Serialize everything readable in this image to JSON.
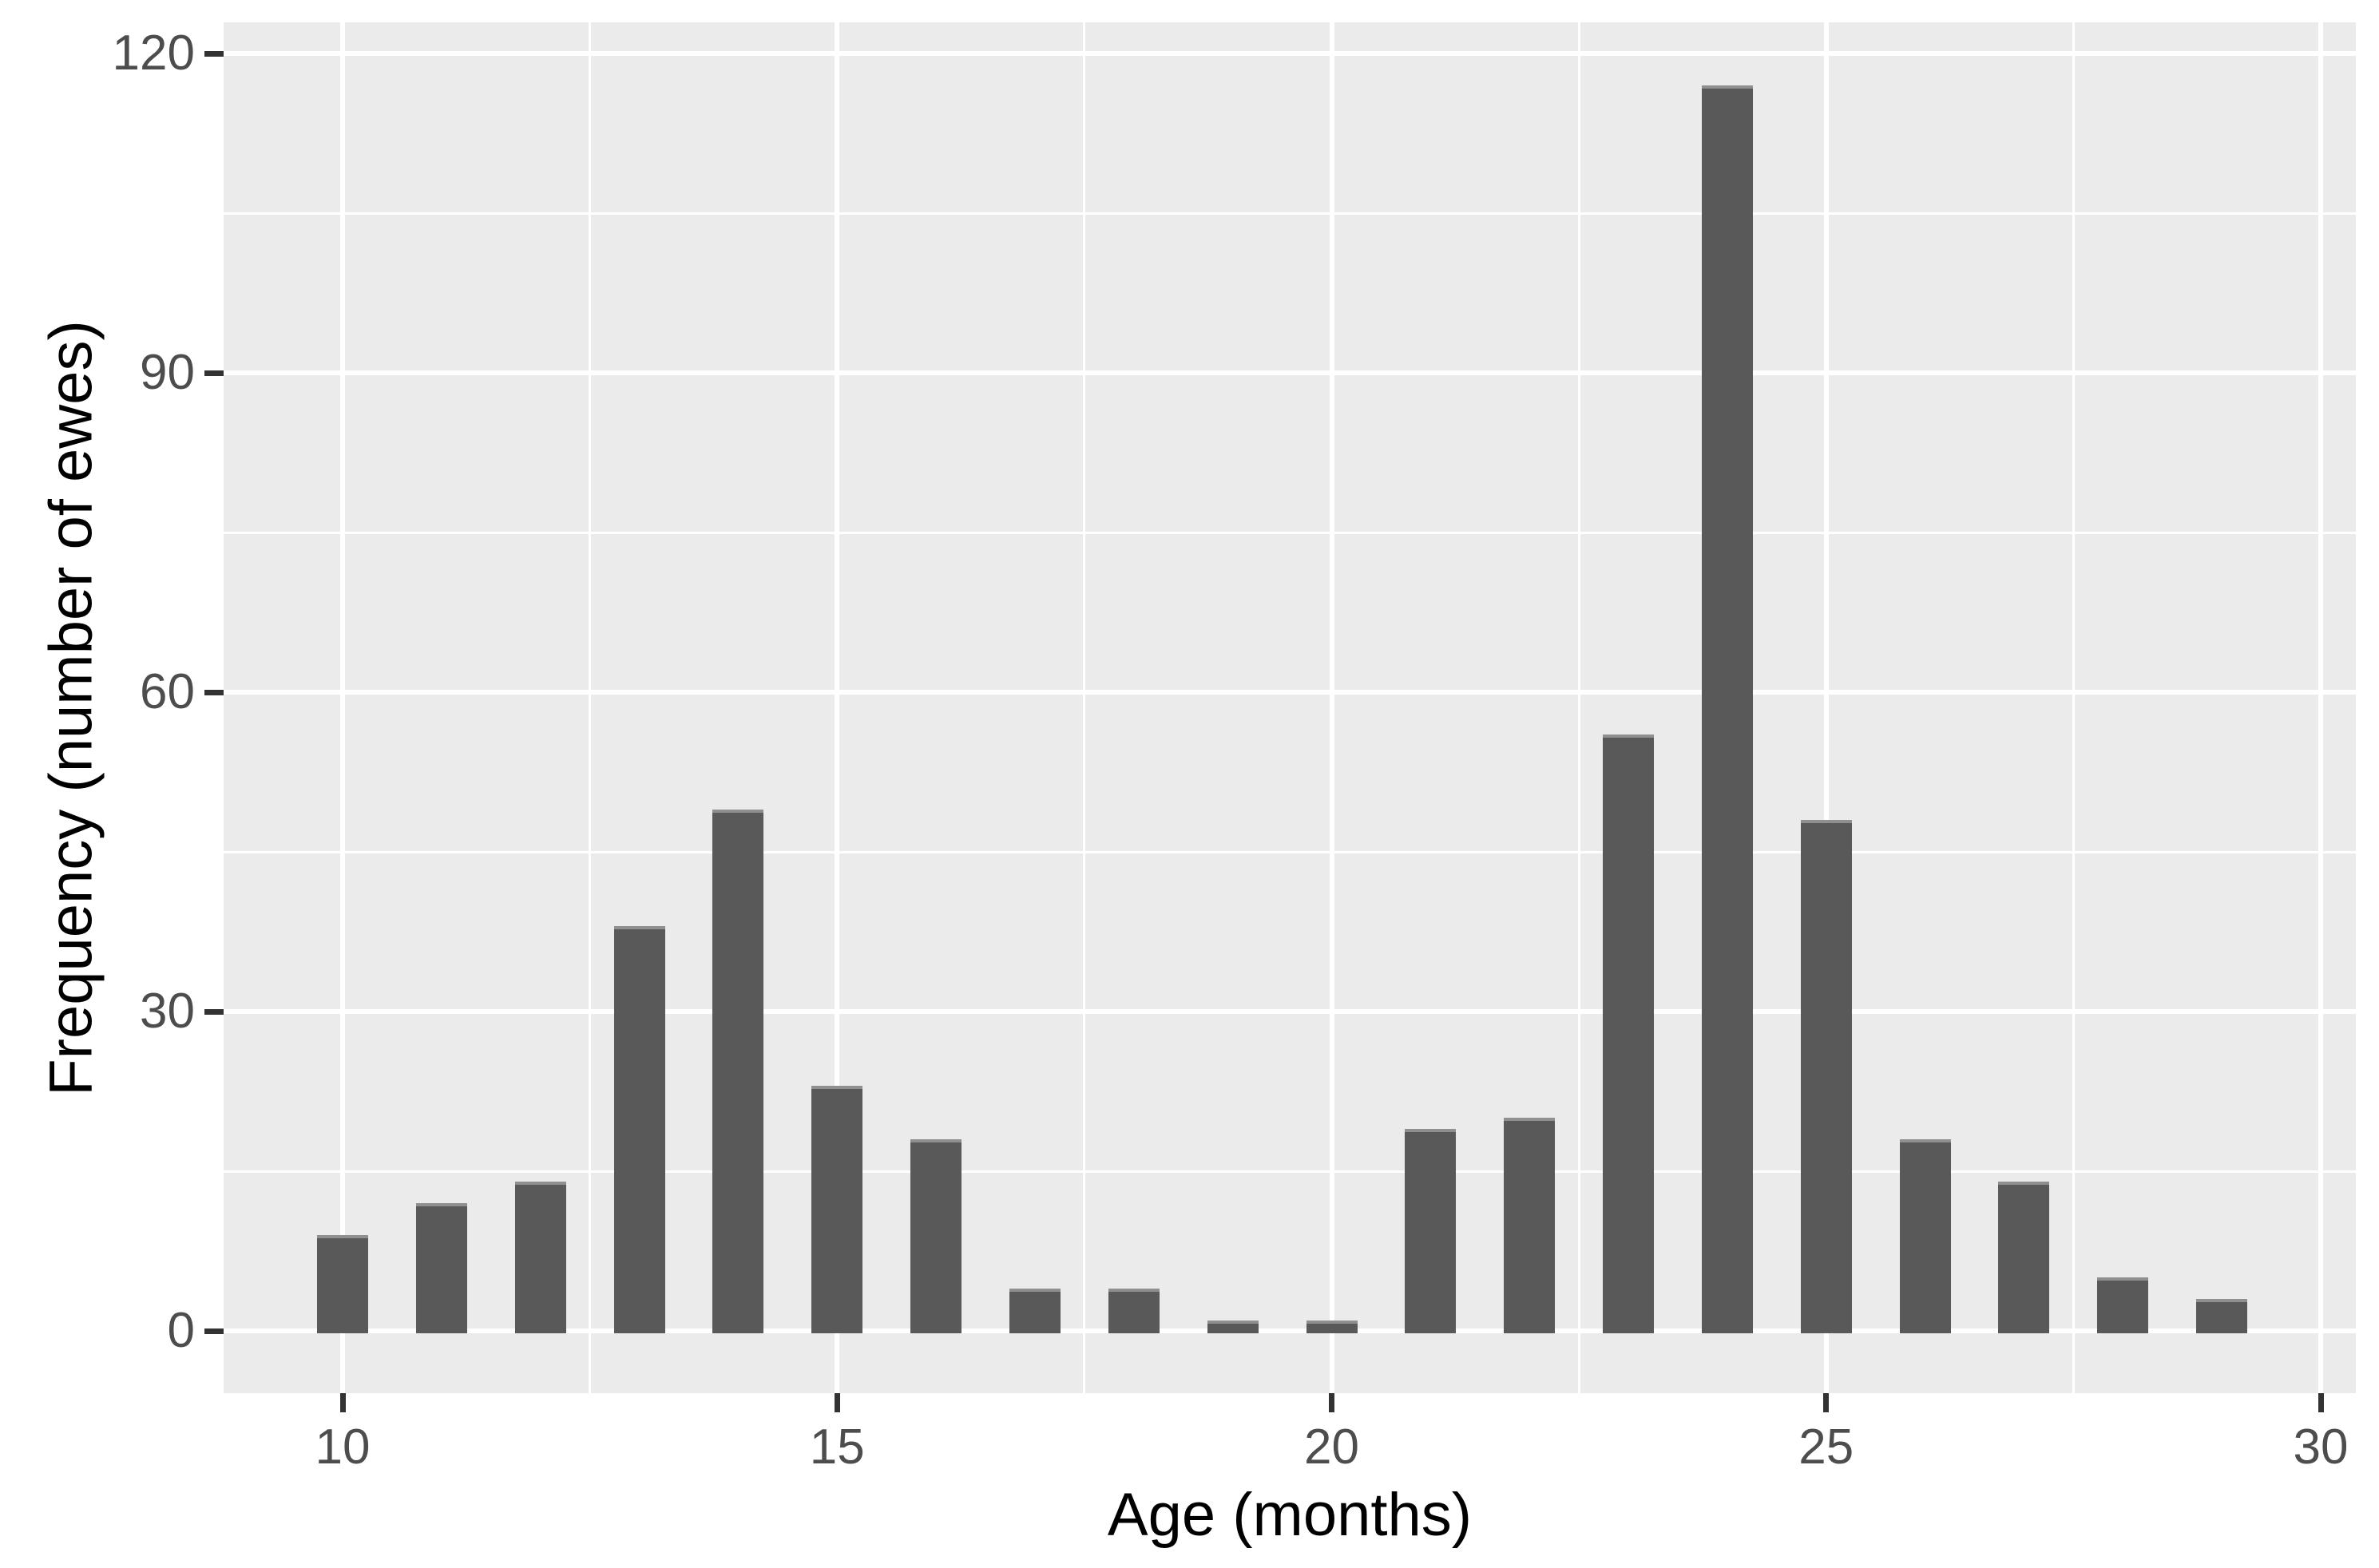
{
  "chart_data": {
    "type": "bar",
    "title": "",
    "xlabel": "Age (months)",
    "ylabel": "Frequency (number of ewes)",
    "categories": [
      10,
      11,
      12,
      13,
      14,
      15,
      16,
      17,
      18,
      19,
      20,
      21,
      22,
      23,
      24,
      25,
      26,
      27,
      28,
      29
    ],
    "values": [
      9,
      12,
      14,
      38,
      49,
      23,
      18,
      4,
      4,
      1,
      1,
      19,
      20,
      56,
      117,
      48,
      18,
      14,
      5,
      3
    ],
    "x_tick_labels": [
      "10",
      "15",
      "20",
      "25",
      "30"
    ],
    "x_tick_values": [
      10,
      15,
      20,
      25,
      30
    ],
    "x_minor_values": [
      12.5,
      17.5,
      22.5,
      27.5
    ],
    "y_tick_labels": [
      "0",
      "30",
      "60",
      "90",
      "120"
    ],
    "y_tick_values": [
      0,
      30,
      60,
      90,
      120
    ],
    "y_minor_values": [
      15,
      45,
      75,
      105
    ],
    "xlim": [
      8.8,
      30.35
    ],
    "ylim": [
      -5.9,
      122.9
    ],
    "grid": "major and minor, white on grey panel",
    "legend": "none",
    "colors": {
      "bar_fill": "#595959",
      "bar_top_edge": "#8F8F8F",
      "panel_bg": "#EBEBEB",
      "gridline": "#FFFFFF",
      "tick_label": "#4D4D4D",
      "tick_mark": "#333333",
      "axis_title": "#000000",
      "page_bg": "#FFFFFF"
    }
  }
}
